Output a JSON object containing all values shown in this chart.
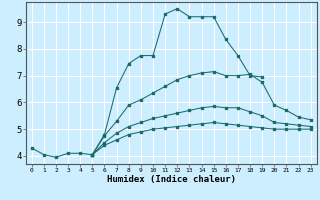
{
  "xlabel": "Humidex (Indice chaleur)",
  "bg_color": "#cceeff",
  "grid_color": "#ffffff",
  "line_color": "#1a6b6b",
  "xlim": [
    -0.5,
    23.5
  ],
  "ylim": [
    3.7,
    9.75
  ],
  "xticks": [
    0,
    1,
    2,
    3,
    4,
    5,
    6,
    7,
    8,
    9,
    10,
    11,
    12,
    13,
    14,
    15,
    16,
    17,
    18,
    19,
    20,
    21,
    22,
    23
  ],
  "yticks": [
    4,
    5,
    6,
    7,
    8,
    9
  ],
  "curves": [
    {
      "x": [
        0,
        1,
        2,
        3,
        4,
        5,
        6,
        7,
        8,
        9,
        10,
        11,
        12,
        13,
        14,
        15,
        16,
        17,
        18,
        19,
        20,
        21,
        22,
        23
      ],
      "y": [
        4.3,
        4.05,
        3.95,
        4.1,
        4.1,
        4.05,
        4.8,
        6.55,
        7.45,
        7.75,
        7.75,
        9.3,
        9.5,
        9.2,
        9.2,
        9.2,
        8.35,
        7.75,
        7.0,
        6.95,
        null,
        null,
        null,
        null
      ]
    },
    {
      "x": [
        5,
        6,
        7,
        8,
        9,
        10,
        11,
        12,
        13,
        14,
        15,
        16,
        17,
        18,
        19,
        20,
        21,
        22,
        23
      ],
      "y": [
        4.05,
        4.75,
        5.3,
        5.9,
        6.1,
        6.35,
        6.6,
        6.85,
        7.0,
        7.1,
        7.15,
        7.0,
        7.0,
        7.05,
        6.75,
        5.9,
        5.7,
        5.45,
        5.35
      ]
    },
    {
      "x": [
        5,
        6,
        7,
        8,
        9,
        10,
        11,
        12,
        13,
        14,
        15,
        16,
        17,
        18,
        19,
        20,
        21,
        22,
        23
      ],
      "y": [
        4.05,
        4.5,
        4.85,
        5.1,
        5.25,
        5.4,
        5.5,
        5.6,
        5.7,
        5.8,
        5.85,
        5.8,
        5.8,
        5.65,
        5.5,
        5.25,
        5.2,
        5.15,
        5.1
      ]
    },
    {
      "x": [
        5,
        6,
        7,
        8,
        9,
        10,
        11,
        12,
        13,
        14,
        15,
        16,
        17,
        18,
        19,
        20,
        21,
        22,
        23
      ],
      "y": [
        4.05,
        4.4,
        4.6,
        4.8,
        4.9,
        5.0,
        5.05,
        5.1,
        5.15,
        5.2,
        5.25,
        5.2,
        5.15,
        5.1,
        5.05,
        5.0,
        5.0,
        5.0,
        5.0
      ]
    }
  ],
  "curve0_full": {
    "x": [
      0,
      1,
      2,
      3,
      4,
      5,
      6,
      7,
      8,
      9,
      10,
      11,
      12,
      13,
      14,
      15,
      16,
      17,
      18,
      19
    ],
    "y": [
      4.3,
      4.05,
      3.95,
      4.1,
      4.1,
      4.05,
      4.8,
      6.55,
      7.45,
      7.75,
      7.75,
      9.3,
      9.5,
      9.2,
      9.2,
      9.2,
      8.35,
      7.75,
      7.0,
      6.95
    ]
  }
}
